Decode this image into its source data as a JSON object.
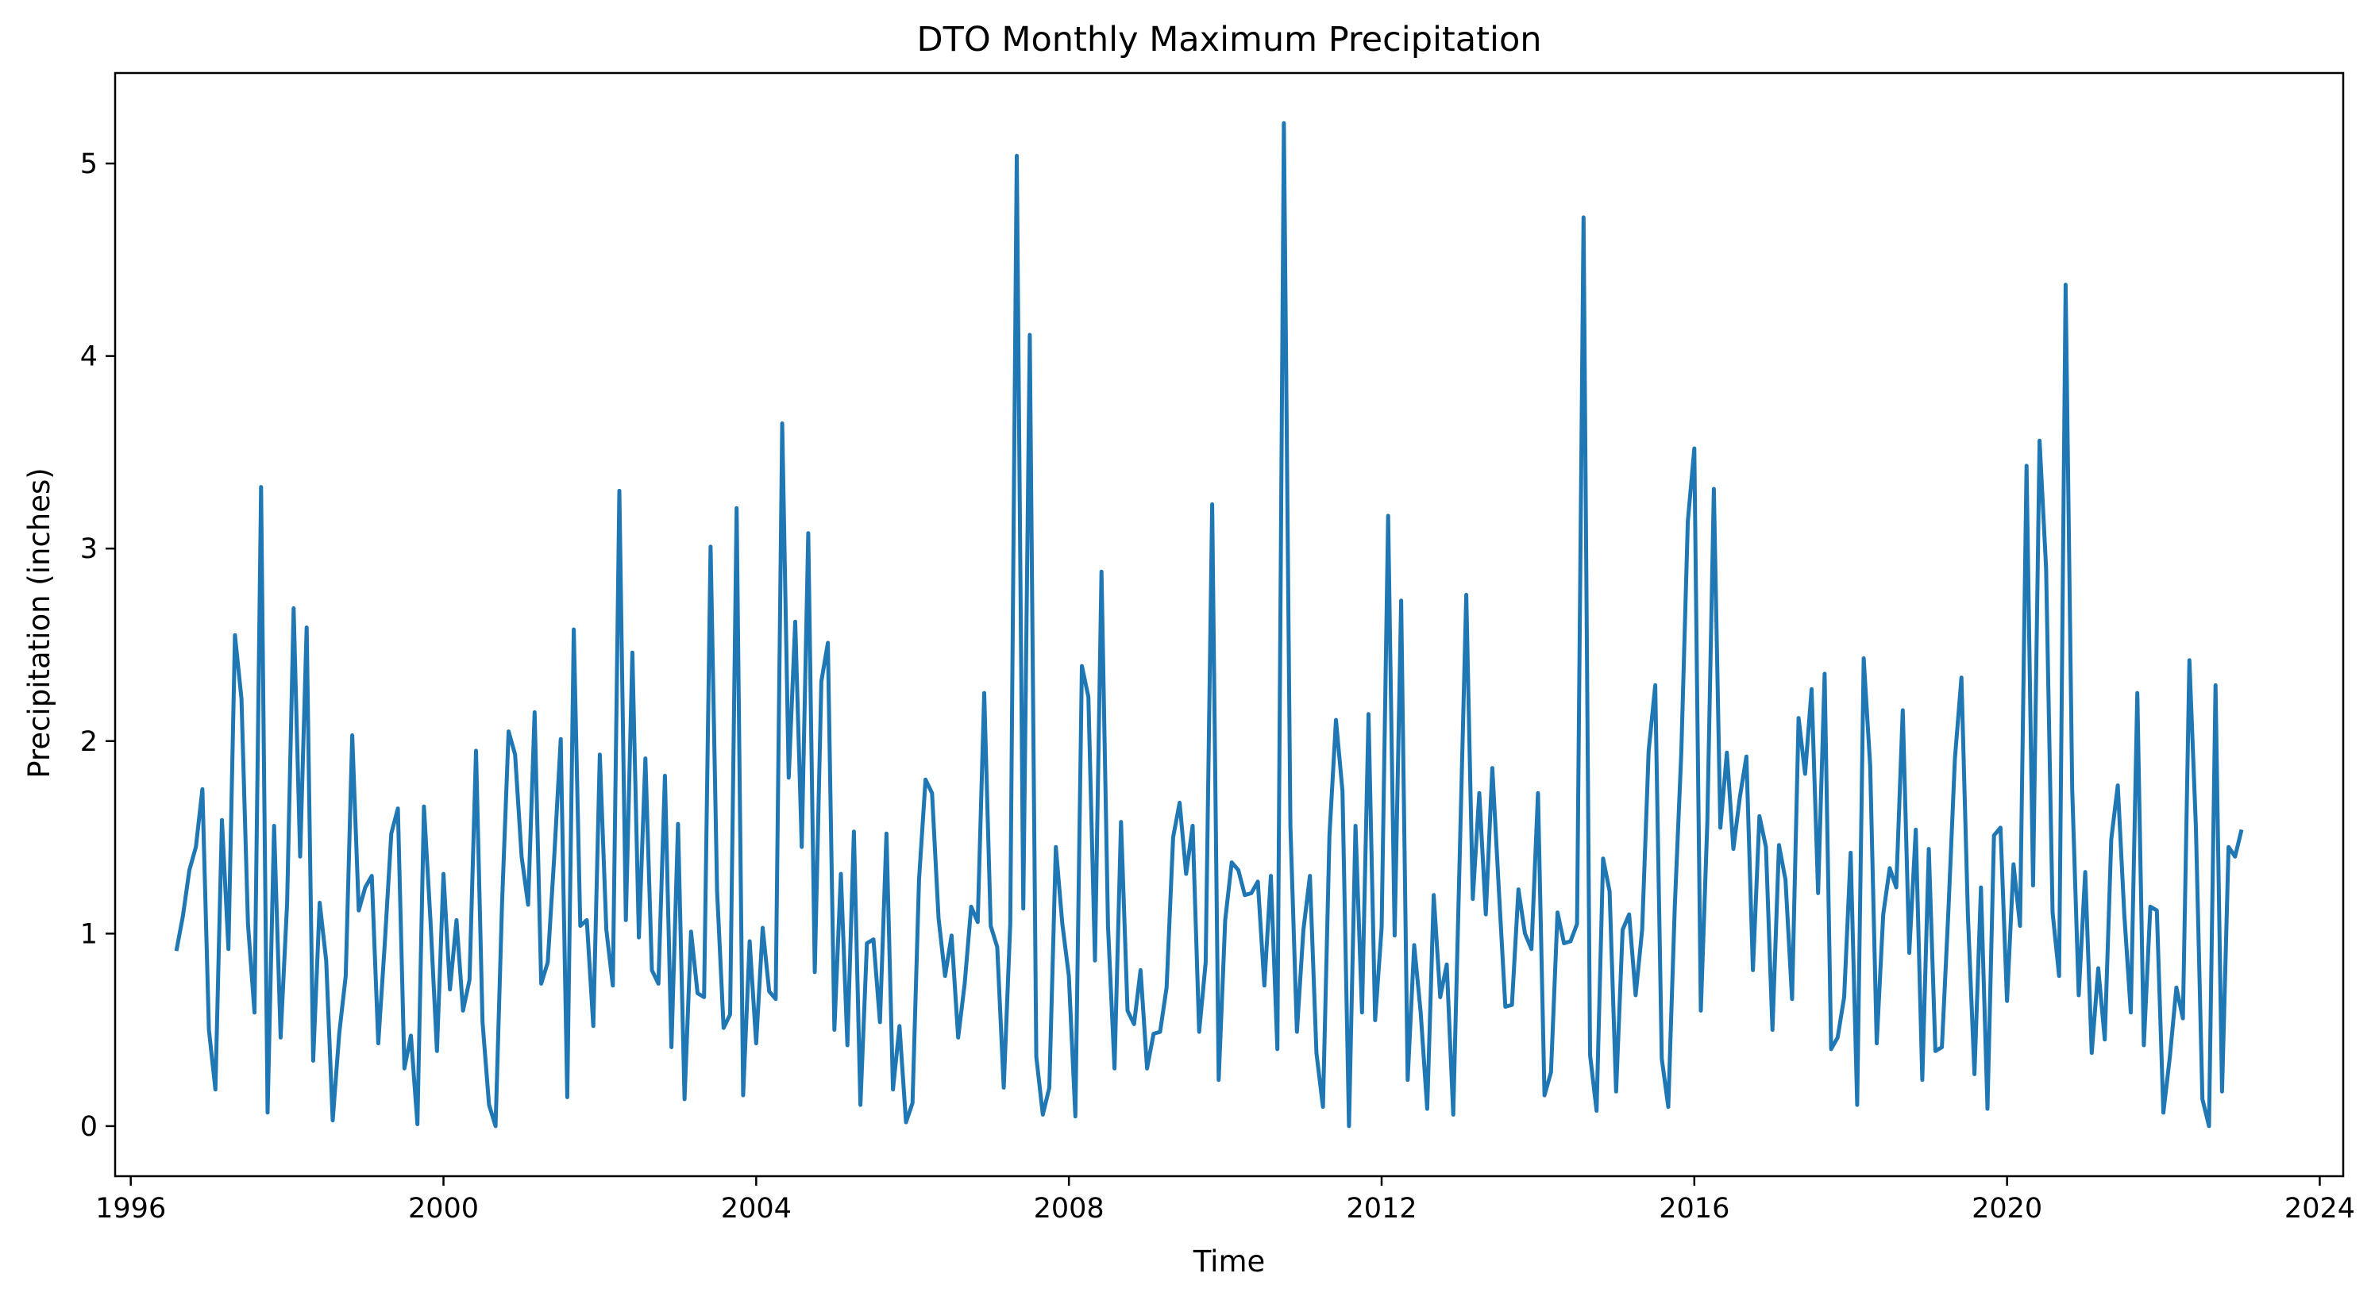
{
  "chart_data": {
    "type": "line",
    "title": "DTO Monthly Maximum Precipitation",
    "xlabel": "Time",
    "ylabel": "Precipitation (inches)",
    "xlim": [
      1995.8,
      2024.3
    ],
    "ylim": [
      -0.26,
      5.47
    ],
    "x_ticks": [
      1996,
      2000,
      2004,
      2008,
      2012,
      2016,
      2020,
      2024
    ],
    "y_ticks": [
      0,
      1,
      2,
      3,
      4,
      5
    ],
    "grid": false,
    "line_color": "#1f77b4",
    "x_start": 1996.583,
    "x_step_months": 1,
    "values": [
      0.91,
      1.09,
      1.33,
      1.45,
      1.75,
      0.5,
      0.19,
      1.59,
      0.92,
      2.55,
      2.22,
      1.05,
      0.59,
      3.32,
      0.07,
      1.56,
      0.46,
      1.16,
      2.69,
      1.4,
      2.59,
      0.34,
      1.16,
      0.86,
      0.03,
      0.48,
      0.78,
      2.03,
      1.12,
      1.24,
      1.3,
      0.43,
      0.95,
      1.52,
      1.65,
      0.3,
      0.47,
      0.01,
      1.66,
      1.07,
      0.39,
      1.31,
      0.71,
      1.07,
      0.6,
      0.76,
      1.95,
      0.54,
      0.11,
      0.0,
      1.16,
      2.05,
      1.93,
      1.4,
      1.15,
      2.15,
      0.74,
      0.85,
      1.4,
      2.01,
      0.15,
      2.58,
      1.04,
      1.07,
      0.52,
      1.93,
      1.02,
      0.73,
      3.3,
      1.07,
      2.46,
      0.98,
      1.91,
      0.81,
      0.74,
      1.82,
      0.41,
      1.57,
      0.14,
      1.01,
      0.69,
      0.67,
      3.01,
      1.22,
      0.51,
      0.58,
      3.21,
      0.16,
      0.96,
      0.43,
      1.03,
      0.7,
      0.66,
      3.65,
      1.81,
      2.62,
      1.45,
      3.08,
      0.8,
      2.31,
      2.51,
      0.5,
      1.31,
      0.42,
      1.53,
      0.11,
      0.95,
      0.97,
      0.54,
      1.52,
      0.19,
      0.52,
      0.02,
      0.12,
      1.28,
      1.8,
      1.73,
      1.08,
      0.78,
      0.99,
      0.46,
      0.74,
      1.14,
      1.06,
      2.25,
      1.04,
      0.93,
      0.2,
      1.05,
      5.04,
      1.13,
      4.11,
      0.36,
      0.06,
      0.2,
      1.45,
      1.05,
      0.78,
      0.05,
      2.39,
      2.23,
      0.86,
      2.88,
      1.04,
      0.3,
      1.58,
      0.6,
      0.53,
      0.81,
      0.3,
      0.48,
      0.49,
      0.72,
      1.5,
      1.68,
      1.31,
      1.56,
      0.49,
      0.85,
      3.23,
      0.24,
      1.07,
      1.37,
      1.33,
      1.2,
      1.21,
      1.27,
      0.73,
      1.3,
      0.4,
      5.21,
      1.56,
      0.49,
      1.02,
      1.3,
      0.38,
      0.1,
      1.51,
      2.11,
      1.74,
      0.0,
      1.56,
      0.59,
      2.14,
      0.55,
      1.03,
      3.17,
      0.99,
      2.73,
      0.24,
      0.94,
      0.59,
      0.09,
      1.2,
      0.67,
      0.84,
      0.06,
      1.41,
      2.76,
      1.18,
      1.73,
      1.1,
      1.86,
      1.23,
      0.62,
      0.63,
      1.23,
      1.0,
      0.92,
      1.73,
      0.16,
      0.28,
      1.11,
      0.95,
      0.96,
      1.05,
      4.72,
      0.37,
      0.08,
      1.39,
      1.22,
      0.18,
      1.02,
      1.1,
      0.68,
      1.02,
      1.95,
      2.29,
      0.35,
      0.1,
      1.14,
      1.94,
      3.14,
      3.52,
      0.6,
      1.58,
      3.31,
      1.55,
      1.94,
      1.44,
      1.71,
      1.92,
      0.81,
      1.61,
      1.45,
      0.5,
      1.46,
      1.28,
      0.66,
      2.12,
      1.83,
      2.27,
      1.21,
      2.35,
      0.4,
      0.46,
      0.67,
      1.42,
      0.11,
      2.43,
      1.87,
      0.43,
      1.1,
      1.34,
      1.24,
      2.16,
      0.9,
      1.54,
      0.24,
      1.44,
      0.39,
      0.41,
      1.12,
      1.91,
      2.33,
      1.09,
      0.27,
      1.24,
      0.09,
      1.51,
      1.55,
      0.65,
      1.36,
      1.04,
      3.43,
      1.25,
      3.56,
      2.9,
      1.11,
      0.78,
      4.37,
      1.75,
      0.68,
      1.32,
      0.38,
      0.82,
      0.45,
      1.49,
      1.77,
      1.1,
      0.59,
      2.25,
      0.42,
      1.14,
      1.12,
      0.07,
      0.36,
      0.72,
      0.56,
      2.42,
      1.55,
      0.14,
      0.0,
      2.29,
      0.18,
      1.45,
      1.4,
      1.54
    ]
  }
}
